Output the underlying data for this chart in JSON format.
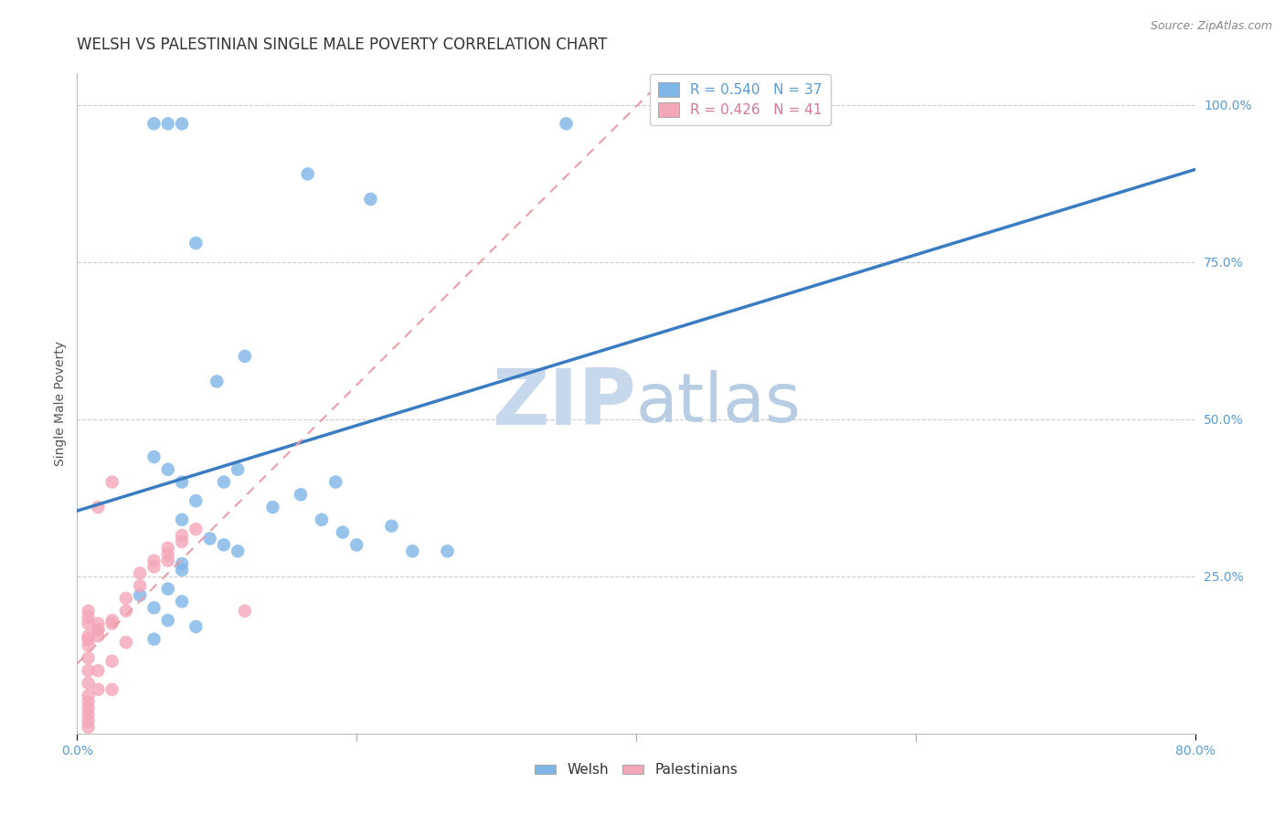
{
  "title": "WELSH VS PALESTINIAN SINGLE MALE POVERTY CORRELATION CHART",
  "source": "Source: ZipAtlas.com",
  "ylabel": "Single Male Poverty",
  "ytick_labels": [
    "100.0%",
    "75.0%",
    "50.0%",
    "25.0%"
  ],
  "ytick_values": [
    1.0,
    0.75,
    0.5,
    0.25
  ],
  "xlim": [
    0.0,
    0.8
  ],
  "ylim": [
    0.0,
    1.05
  ],
  "welsh_color": "#7EB6E8",
  "palestinian_color": "#F4A7B9",
  "regression_welsh_color": "#3A7CC1",
  "regression_palestinian_color": "#E8A0A8",
  "R_welsh": 0.54,
  "N_welsh": 37,
  "R_palestinian": 0.426,
  "N_palestinian": 41,
  "welsh_x": [
    0.055,
    0.065,
    0.075,
    0.165,
    0.21,
    0.085,
    0.12,
    0.1,
    0.055,
    0.065,
    0.075,
    0.085,
    0.075,
    0.095,
    0.105,
    0.115,
    0.075,
    0.075,
    0.065,
    0.045,
    0.055,
    0.115,
    0.105,
    0.185,
    0.175,
    0.225,
    0.265,
    0.24,
    0.055,
    0.35,
    0.085,
    0.065,
    0.075,
    0.16,
    0.14,
    0.19,
    0.2
  ],
  "welsh_y": [
    0.97,
    0.97,
    0.97,
    0.89,
    0.85,
    0.78,
    0.6,
    0.56,
    0.44,
    0.42,
    0.4,
    0.37,
    0.34,
    0.31,
    0.3,
    0.29,
    0.27,
    0.26,
    0.23,
    0.22,
    0.2,
    0.42,
    0.4,
    0.4,
    0.34,
    0.33,
    0.29,
    0.29,
    0.15,
    0.97,
    0.17,
    0.18,
    0.21,
    0.38,
    0.36,
    0.32,
    0.3
  ],
  "palestinian_x": [
    0.025,
    0.015,
    0.008,
    0.008,
    0.008,
    0.015,
    0.025,
    0.015,
    0.008,
    0.008,
    0.008,
    0.015,
    0.025,
    0.025,
    0.035,
    0.035,
    0.045,
    0.045,
    0.055,
    0.055,
    0.065,
    0.065,
    0.065,
    0.075,
    0.075,
    0.085,
    0.008,
    0.008,
    0.008,
    0.015,
    0.015,
    0.015,
    0.025,
    0.035,
    0.12,
    0.008,
    0.008,
    0.008,
    0.008,
    0.008,
    0.008
  ],
  "palestinian_y": [
    0.4,
    0.36,
    0.12,
    0.1,
    0.08,
    0.07,
    0.07,
    0.1,
    0.14,
    0.15,
    0.155,
    0.165,
    0.175,
    0.18,
    0.195,
    0.215,
    0.235,
    0.255,
    0.265,
    0.275,
    0.275,
    0.285,
    0.295,
    0.305,
    0.315,
    0.325,
    0.195,
    0.185,
    0.175,
    0.175,
    0.165,
    0.155,
    0.115,
    0.145,
    0.195,
    0.06,
    0.05,
    0.04,
    0.03,
    0.02,
    0.01
  ],
  "background_color": "#ffffff",
  "grid_color": "#cccccc",
  "title_color": "#333333",
  "axis_label_color": "#555555",
  "tick_label_color": "#5B9BD5",
  "watermark_zip_color": "#C8D8EC",
  "watermark_atlas_color": "#B8CCE4",
  "source_color": "#888888"
}
